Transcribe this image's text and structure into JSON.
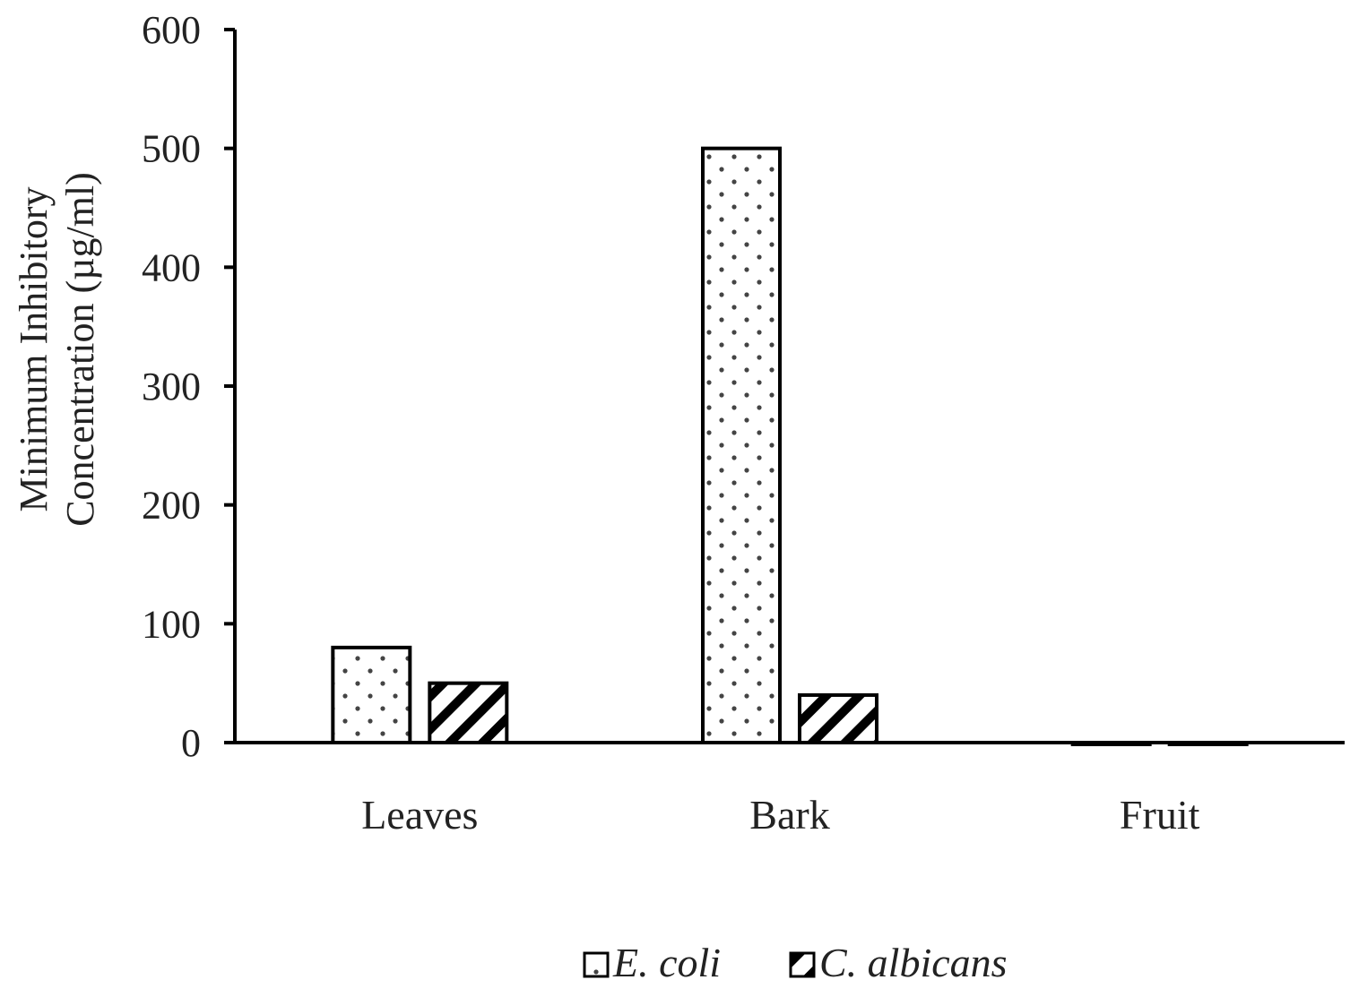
{
  "chart_data": {
    "type": "bar",
    "categories": [
      "Leaves",
      "Bark",
      "Fruit"
    ],
    "series": [
      {
        "name": "E. coli",
        "values": [
          80,
          500,
          0
        ],
        "pattern": "dots"
      },
      {
        "name": "C. albicans",
        "values": [
          50,
          40,
          0
        ],
        "pattern": "diagonal"
      }
    ],
    "ylabel_line1": "Minimum Inhibitory",
    "ylabel_line2": "Concentration (µg/ml)",
    "ylim": [
      0,
      600
    ],
    "yticks": [
      0,
      100,
      200,
      300,
      400,
      500,
      600
    ],
    "grid": false,
    "legend_position": "bottom"
  }
}
